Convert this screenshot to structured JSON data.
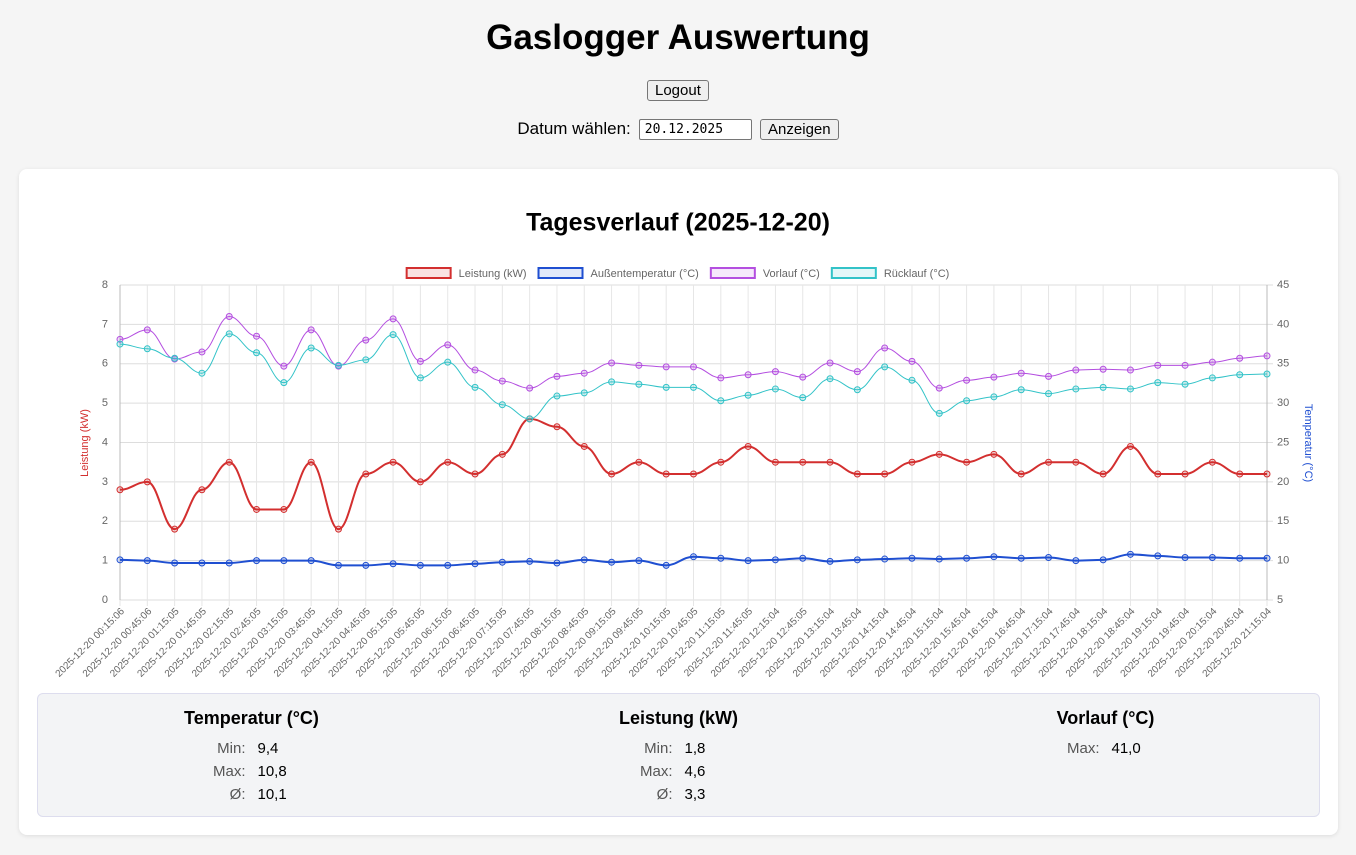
{
  "header": {
    "title": "Gaslogger Auswertung",
    "logout": "Logout",
    "date_label": "Datum wählen:",
    "date_value": "20.12.2025",
    "submit": "Anzeigen"
  },
  "chart_data": {
    "type": "line",
    "title": "Tagesverlauf (2025-12-20)",
    "y_label": "Leistung (kW)",
    "y2_label": "Temperatur (°C)",
    "categories": [
      "2025-12-20 00:15:06",
      "2025-12-20 00:45:06",
      "2025-12-20 01:15:05",
      "2025-12-20 01:45:05",
      "2025-12-20 02:15:05",
      "2025-12-20 02:45:05",
      "2025-12-20 03:15:05",
      "2025-12-20 03:45:05",
      "2025-12-20 04:15:05",
      "2025-12-20 04:45:05",
      "2025-12-20 05:15:05",
      "2025-12-20 05:45:05",
      "2025-12-20 06:15:05",
      "2025-12-20 06:45:05",
      "2025-12-20 07:15:05",
      "2025-12-20 07:45:05",
      "2025-12-20 08:15:05",
      "2025-12-20 08:45:05",
      "2025-12-20 09:15:05",
      "2025-12-20 09:45:05",
      "2025-12-20 10:15:05",
      "2025-12-20 10:45:05",
      "2025-12-20 11:15:05",
      "2025-12-20 11:45:05",
      "2025-12-20 12:15:04",
      "2025-12-20 12:45:05",
      "2025-12-20 13:15:04",
      "2025-12-20 13:45:04",
      "2025-12-20 14:15:04",
      "2025-12-20 14:45:04",
      "2025-12-20 15:15:04",
      "2025-12-20 15:45:04",
      "2025-12-20 16:15:04",
      "2025-12-20 16:45:04",
      "2025-12-20 17:15:04",
      "2025-12-20 17:45:04",
      "2025-12-20 18:15:04",
      "2025-12-20 18:45:04",
      "2025-12-20 19:15:04",
      "2025-12-20 19:45:04",
      "2025-12-20 20:15:04",
      "2025-12-20 20:45:04",
      "2025-12-20 21:15:04"
    ],
    "series": [
      {
        "name": "Leistung (kW)",
        "color": "#d32f2f",
        "axis": "y",
        "values": [
          2.8,
          3.0,
          1.8,
          2.8,
          3.5,
          2.3,
          2.3,
          3.5,
          1.8,
          3.2,
          3.5,
          3.0,
          3.5,
          3.2,
          3.7,
          4.6,
          4.4,
          3.9,
          3.2,
          3.5,
          3.2,
          3.2,
          3.5,
          3.9,
          3.5,
          3.5,
          3.5,
          3.2,
          3.2,
          3.5,
          3.7,
          3.5,
          3.7,
          3.2,
          3.5,
          3.5,
          3.2,
          3.9,
          3.2,
          3.2,
          3.5,
          3.2,
          3.2
        ]
      },
      {
        "name": "Außentemperatur (°C)",
        "color": "#1f4fd1",
        "axis": "y2",
        "values": [
          10.1,
          10.0,
          9.7,
          9.7,
          9.7,
          10.0,
          10.0,
          10.0,
          9.4,
          9.4,
          9.6,
          9.4,
          9.4,
          9.6,
          9.8,
          9.9,
          9.7,
          10.1,
          9.8,
          10.0,
          9.4,
          10.5,
          10.3,
          10.0,
          10.1,
          10.3,
          9.9,
          10.1,
          10.2,
          10.3,
          10.2,
          10.3,
          10.5,
          10.3,
          10.4,
          10.0,
          10.1,
          10.8,
          10.6,
          10.4,
          10.4,
          10.3,
          10.3
        ]
      },
      {
        "name": "Vorlauf (°C)",
        "color": "#b44fe0",
        "axis": "y2",
        "values": [
          38.1,
          39.3,
          35.6,
          36.5,
          41.0,
          38.5,
          34.7,
          39.3,
          34.7,
          38.0,
          40.7,
          35.3,
          37.4,
          34.2,
          32.8,
          31.9,
          33.4,
          33.8,
          35.1,
          34.8,
          34.6,
          34.6,
          33.2,
          33.6,
          34.0,
          33.3,
          35.1,
          34.0,
          37.0,
          35.3,
          31.9,
          32.9,
          33.3,
          33.8,
          33.4,
          34.2,
          34.3,
          34.2,
          34.8,
          34.8,
          35.2,
          35.7,
          36.0
        ]
      },
      {
        "name": "Rücklauf (°C)",
        "color": "#33c3c8",
        "axis": "y2",
        "values": [
          37.5,
          36.9,
          35.7,
          33.8,
          38.8,
          36.4,
          32.6,
          37.0,
          34.8,
          35.5,
          38.7,
          33.2,
          35.2,
          32.0,
          29.8,
          28.0,
          30.9,
          31.3,
          32.7,
          32.4,
          32.0,
          32.0,
          30.3,
          31.0,
          31.8,
          30.7,
          33.1,
          31.7,
          34.6,
          32.9,
          28.7,
          30.3,
          30.8,
          31.7,
          31.2,
          31.8,
          32.0,
          31.8,
          32.6,
          32.4,
          33.2,
          33.6,
          33.7
        ]
      }
    ],
    "ylim": [
      0,
      8
    ],
    "yticks": [
      0,
      1,
      2,
      3,
      4,
      5,
      6,
      7,
      8
    ],
    "y2lim": [
      5,
      45
    ],
    "y2ticks": [
      5,
      10,
      15,
      20,
      25,
      30,
      35,
      40,
      45
    ],
    "grid": true,
    "legend": "top"
  },
  "stats": [
    {
      "title": "Temperatur (°C)",
      "rows": [
        [
          "Min:",
          "9,4"
        ],
        [
          "Max:",
          "10,8"
        ],
        [
          "Ø:",
          "10,1"
        ]
      ]
    },
    {
      "title": "Leistung (kW)",
      "rows": [
        [
          "Min:",
          "1,8"
        ],
        [
          "Max:",
          "4,6"
        ],
        [
          "Ø:",
          "3,3"
        ]
      ]
    },
    {
      "title": "Vorlauf (°C)",
      "rows": [
        [
          "Max:",
          "41,0"
        ]
      ]
    }
  ]
}
